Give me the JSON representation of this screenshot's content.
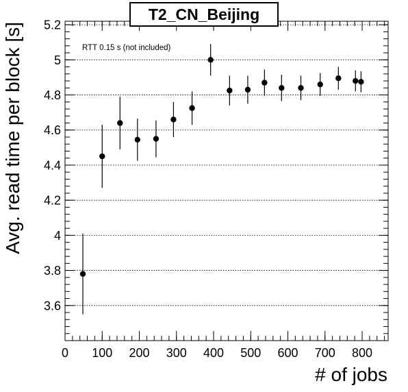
{
  "chart_data": {
    "type": "scatter",
    "title": "T2_CN_Beijing",
    "annotation": "RTT 0.15 s (not included)",
    "xlabel": "# of jobs",
    "ylabel": "Avg. read time per block [s]",
    "xlim": [
      0,
      870
    ],
    "ylim": [
      3.4,
      5.22
    ],
    "x_ticks": [
      0,
      100,
      200,
      300,
      400,
      500,
      600,
      700,
      800
    ],
    "y_ticks": [
      3.6,
      3.8,
      4,
      4.2,
      4.4,
      4.6,
      4.8,
      5,
      5.2
    ],
    "grid": "horizontal",
    "legend": "none",
    "marker_color": "#000000",
    "points": [
      {
        "x": 48,
        "y": 3.78,
        "err": 0.23
      },
      {
        "x": 100,
        "y": 4.45,
        "err": 0.18
      },
      {
        "x": 148,
        "y": 4.64,
        "err": 0.15
      },
      {
        "x": 195,
        "y": 4.545,
        "err": 0.12
      },
      {
        "x": 245,
        "y": 4.55,
        "err": 0.105
      },
      {
        "x": 292,
        "y": 4.66,
        "err": 0.1
      },
      {
        "x": 342,
        "y": 4.725,
        "err": 0.095
      },
      {
        "x": 392,
        "y": 5.0,
        "err": 0.09
      },
      {
        "x": 443,
        "y": 4.825,
        "err": 0.085
      },
      {
        "x": 492,
        "y": 4.83,
        "err": 0.08
      },
      {
        "x": 537,
        "y": 4.87,
        "err": 0.075
      },
      {
        "x": 583,
        "y": 4.84,
        "err": 0.075
      },
      {
        "x": 635,
        "y": 4.84,
        "err": 0.07
      },
      {
        "x": 687,
        "y": 4.86,
        "err": 0.065
      },
      {
        "x": 736,
        "y": 4.895,
        "err": 0.065
      },
      {
        "x": 782,
        "y": 4.88,
        "err": 0.06
      },
      {
        "x": 797,
        "y": 4.875,
        "err": 0.06
      }
    ]
  }
}
